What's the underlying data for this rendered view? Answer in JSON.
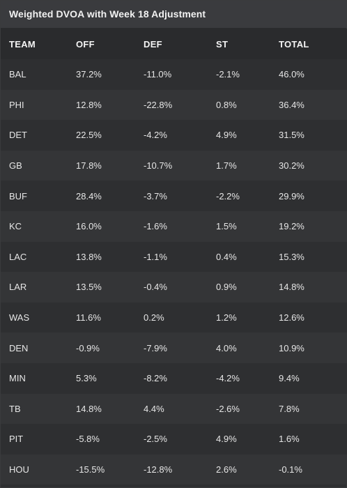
{
  "title": "Weighted DVOA with Week 18 Adjustment",
  "columns": [
    "TEAM",
    "OFF",
    "DEF",
    "ST",
    "TOTAL"
  ],
  "rows": [
    [
      "BAL",
      "37.2%",
      "-11.0%",
      "-2.1%",
      "46.0%"
    ],
    [
      "PHI",
      "12.8%",
      "-22.8%",
      "0.8%",
      "36.4%"
    ],
    [
      "DET",
      "22.5%",
      "-4.2%",
      "4.9%",
      "31.5%"
    ],
    [
      "GB",
      "17.8%",
      "-10.7%",
      "1.7%",
      "30.2%"
    ],
    [
      "BUF",
      "28.4%",
      "-3.7%",
      "-2.2%",
      "29.9%"
    ],
    [
      "KC",
      "16.0%",
      "-1.6%",
      "1.5%",
      "19.2%"
    ],
    [
      "LAC",
      "13.8%",
      "-1.1%",
      "0.4%",
      "15.3%"
    ],
    [
      "LAR",
      "13.5%",
      "-0.4%",
      "0.9%",
      "14.8%"
    ],
    [
      "WAS",
      "11.6%",
      "0.2%",
      "1.2%",
      "12.6%"
    ],
    [
      "DEN",
      "-0.9%",
      "-7.9%",
      "4.0%",
      "10.9%"
    ],
    [
      "MIN",
      "5.3%",
      "-8.2%",
      "-4.2%",
      "9.4%"
    ],
    [
      "TB",
      "14.8%",
      "4.4%",
      "-2.6%",
      "7.8%"
    ],
    [
      "PIT",
      "-5.8%",
      "-2.5%",
      "4.9%",
      "1.6%"
    ],
    [
      "HOU",
      "-15.5%",
      "-12.8%",
      "2.6%",
      "-0.1%"
    ]
  ]
}
